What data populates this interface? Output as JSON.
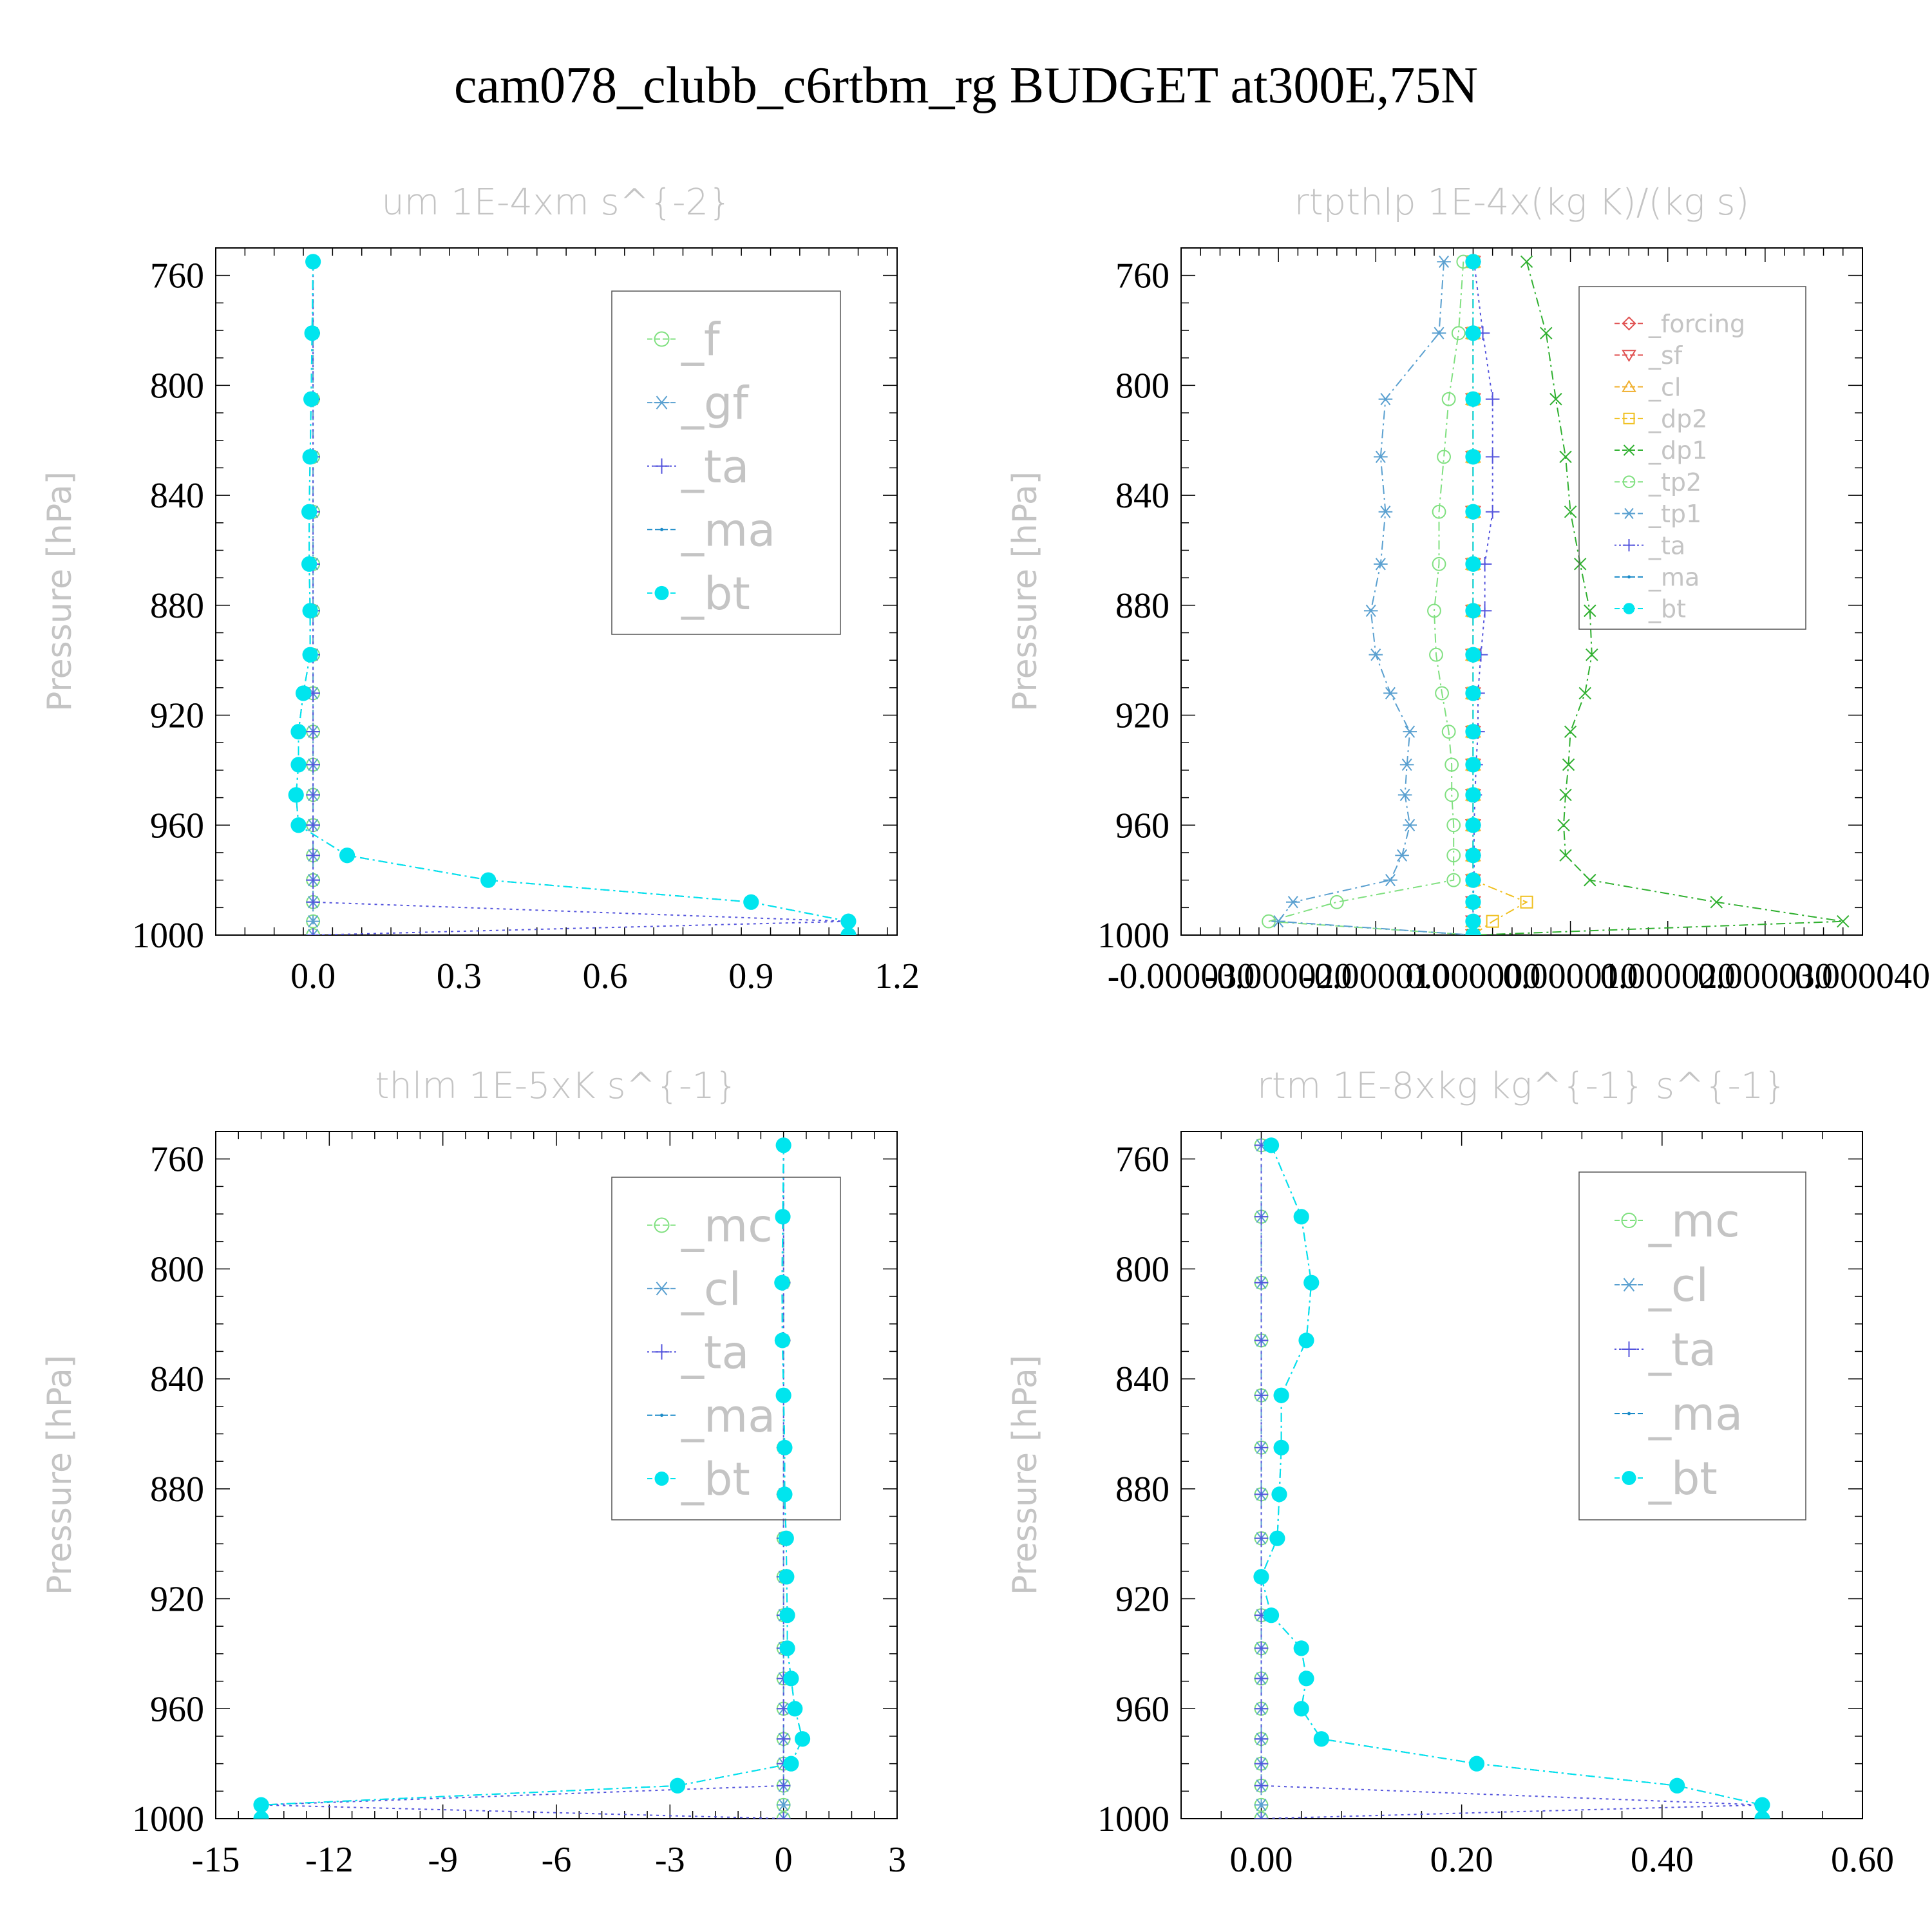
{
  "title": "cam078_clubb_c6rtbm_rg  BUDGET at300E,75N",
  "colors": {
    "f": "#7fe07f",
    "gf": "#5aa0d0",
    "ta": "#5555dd",
    "ma": "#1a8ac8",
    "bt": "#00e5ee",
    "forcing": "#e05050",
    "sf": "#e05050",
    "cl_orange": "#f0b030",
    "dp2": "#f0c020",
    "dp1": "#30b030",
    "tp2": "#80e080",
    "tp1": "#5aa0d0",
    "mc": "#7fe07f",
    "cl": "#5aa0d0"
  },
  "chart_data": [
    {
      "type": "line",
      "title": "um   1E-4xm s^{-2}",
      "ylabel": "Pressure [hPa]",
      "xlim": [
        -0.2,
        1.2
      ],
      "ylim": [
        1000,
        750
      ],
      "xticks": [
        0.0,
        0.3,
        0.6,
        0.9,
        1.2
      ],
      "xtick_labels": [
        "0.0",
        "0.3",
        "0.6",
        "0.9",
        "1.2"
      ],
      "yticks": [
        760,
        800,
        840,
        880,
        920,
        960,
        1000
      ],
      "ytick_labels": [
        "760",
        "800",
        "840",
        "880",
        "920",
        "960",
        "1000"
      ],
      "legend_position": "top-right",
      "y": [
        755,
        781,
        805,
        826,
        846,
        865,
        882,
        898,
        912,
        926,
        938,
        949,
        960,
        971,
        980,
        988,
        995,
        1000
      ],
      "series": [
        {
          "name": "_f",
          "color": "f",
          "marker": "circle-open",
          "values": [
            0,
            0,
            0,
            0,
            0,
            0,
            0,
            0,
            0,
            0,
            0,
            0,
            0,
            0,
            0,
            0,
            0,
            0
          ]
        },
        {
          "name": "_gf",
          "color": "gf",
          "marker": "asterisk",
          "values": [
            0,
            0,
            0,
            0,
            0,
            0,
            0,
            0,
            0,
            0,
            0,
            0,
            0,
            0,
            0,
            0,
            0,
            0
          ]
        },
        {
          "name": "_ta",
          "color": "ta",
          "marker": "plus",
          "dash": "dotted",
          "values": [
            0,
            0,
            0,
            0,
            0,
            0,
            0,
            0,
            0,
            0,
            0,
            0,
            0,
            0,
            0,
            0,
            1.1,
            0
          ]
        },
        {
          "name": "_ma",
          "color": "ma",
          "marker": "dot",
          "values": [
            0,
            -0.002,
            -0.004,
            -0.006,
            -0.008,
            -0.008,
            -0.006,
            -0.006,
            -0.02,
            -0.03,
            -0.03,
            -0.035,
            -0.03,
            0.07,
            0.36,
            0.9,
            1.1,
            1.1
          ]
        },
        {
          "name": "_bt",
          "color": "bt",
          "marker": "filled-circle",
          "values": [
            0,
            -0.002,
            -0.004,
            -0.006,
            -0.008,
            -0.008,
            -0.006,
            -0.006,
            -0.02,
            -0.03,
            -0.03,
            -0.035,
            -0.03,
            0.07,
            0.36,
            0.9,
            1.1,
            1.1
          ]
        }
      ]
    },
    {
      "type": "line",
      "title": "rtpthlp   1E-4x(kg K)/(kg s)",
      "ylabel": "Pressure [hPa]",
      "xlim": [
        -3e-05,
        4e-05
      ],
      "ylim": [
        1000,
        750
      ],
      "xticks": [
        -3e-05,
        -2e-05,
        -1e-05,
        0.0,
        1e-05,
        2e-05,
        3e-05,
        4e-05
      ],
      "xtick_labels": [
        "-0.000030",
        "-0.000020",
        "-0.000010",
        "0.000000",
        "0.000010",
        "0.000020",
        "0.000030",
        "0.000040"
      ],
      "yticks": [
        760,
        800,
        840,
        880,
        920,
        960,
        1000
      ],
      "ytick_labels": [
        "760",
        "800",
        "840",
        "880",
        "920",
        "960",
        "1000"
      ],
      "legend_position": "top-right",
      "y": [
        755,
        781,
        805,
        826,
        846,
        865,
        882,
        898,
        912,
        926,
        938,
        949,
        960,
        971,
        980,
        988,
        995,
        1000
      ],
      "series": [
        {
          "name": "_forcing",
          "color": "forcing",
          "marker": "diamond-open",
          "values": [
            0,
            0,
            0,
            0,
            0,
            0,
            0,
            0,
            0,
            0,
            0,
            0,
            0,
            0,
            0,
            0,
            0,
            0
          ]
        },
        {
          "name": "_sf",
          "color": "sf",
          "marker": "triangle-down-open",
          "values": [
            0,
            0,
            0,
            0,
            0,
            0,
            0,
            0,
            0,
            0,
            0,
            0,
            0,
            0,
            0,
            0,
            0,
            0
          ]
        },
        {
          "name": "_cl",
          "color": "cl_orange",
          "marker": "triangle-up-open",
          "values": [
            0,
            0,
            0,
            0,
            0,
            0,
            0,
            0,
            0,
            0,
            0,
            0,
            0,
            0,
            0,
            0,
            0,
            0
          ]
        },
        {
          "name": "_dp2",
          "color": "dp2",
          "marker": "square-open",
          "values": [
            0,
            0,
            0,
            0,
            0,
            0,
            0,
            0,
            0,
            0,
            0,
            0,
            0,
            0,
            0,
            5.5e-06,
            2e-06,
            0
          ]
        },
        {
          "name": "_dp1",
          "color": "dp1",
          "marker": "x",
          "values": [
            5.5e-06,
            7.5e-06,
            8.5e-06,
            9.5e-06,
            1e-05,
            1.1e-05,
            1.2e-05,
            1.22e-05,
            1.15e-05,
            1e-05,
            9.8e-06,
            9.5e-06,
            9.3e-06,
            9.5e-06,
            1.2e-05,
            2.5e-05,
            3.8e-05,
            0
          ]
        },
        {
          "name": "_tp2",
          "color": "tp2",
          "marker": "circle-open",
          "values": [
            -1e-06,
            -1.5e-06,
            -2.5e-06,
            -3e-06,
            -3.5e-06,
            -3.5e-06,
            -4e-06,
            -3.8e-06,
            -3.2e-06,
            -2.5e-06,
            -2.2e-06,
            -2.2e-06,
            -2e-06,
            -2e-06,
            -2e-06,
            -1.4e-05,
            -2.1e-05,
            0
          ]
        },
        {
          "name": "_tp1",
          "color": "tp1",
          "marker": "asterisk",
          "values": [
            -3e-06,
            -3.5e-06,
            -9e-06,
            -9.5e-06,
            -9e-06,
            -9.5e-06,
            -1.05e-05,
            -1e-05,
            -8.5e-06,
            -6.5e-06,
            -6.8e-06,
            -7e-06,
            -6.5e-06,
            -7.3e-06,
            -8.5e-06,
            -1.85e-05,
            -2e-05,
            0
          ]
        },
        {
          "name": "_ta",
          "color": "ta",
          "marker": "plus",
          "dash": "dotted",
          "values": [
            1e-07,
            1e-06,
            2e-06,
            2e-06,
            2e-06,
            1.2e-06,
            1.2e-06,
            8e-07,
            5e-07,
            5e-07,
            3e-07,
            2e-07,
            1e-07,
            1e-07,
            1e-07,
            0,
            0,
            0
          ]
        },
        {
          "name": "_ma",
          "color": "ma",
          "marker": "dot",
          "values": [
            0,
            0,
            0,
            0,
            0,
            0,
            0,
            0,
            0,
            0,
            0,
            0,
            0,
            0,
            0,
            0,
            0,
            0
          ]
        },
        {
          "name": "_bt",
          "color": "bt",
          "marker": "filled-circle",
          "values": [
            0,
            0,
            0,
            0,
            0,
            0,
            0,
            0,
            0,
            0,
            0,
            0,
            0,
            0,
            0,
            0,
            0,
            0
          ]
        }
      ]
    },
    {
      "type": "line",
      "title": "thlm   1E-5xK s^{-1}",
      "ylabel": "Pressure [hPa]",
      "xlim": [
        -15,
        3
      ],
      "ylim": [
        1000,
        750
      ],
      "xticks": [
        -15,
        -12,
        -9,
        -6,
        -3,
        0,
        3
      ],
      "xtick_labels": [
        "-15",
        "-12",
        "-9",
        "-6",
        "-3",
        "0",
        "3"
      ],
      "yticks": [
        760,
        800,
        840,
        880,
        920,
        960,
        1000
      ],
      "ytick_labels": [
        "760",
        "800",
        "840",
        "880",
        "920",
        "960",
        "1000"
      ],
      "legend_position": "top-right",
      "y": [
        755,
        781,
        805,
        826,
        846,
        865,
        882,
        898,
        912,
        926,
        938,
        949,
        960,
        971,
        980,
        988,
        995,
        1000
      ],
      "series": [
        {
          "name": "_mc",
          "color": "mc",
          "marker": "circle-open",
          "values": [
            0,
            0,
            0,
            0,
            0,
            0,
            0,
            0,
            0,
            0,
            0,
            0,
            0,
            0,
            0,
            0,
            0,
            0
          ]
        },
        {
          "name": "_cl",
          "color": "cl",
          "marker": "asterisk",
          "values": [
            0,
            0,
            0,
            0,
            0,
            0,
            0,
            0,
            0,
            0,
            0,
            0,
            0,
            0,
            0,
            0,
            0,
            0
          ]
        },
        {
          "name": "_ta",
          "color": "ta",
          "marker": "plus",
          "dash": "dotted",
          "values": [
            0,
            0,
            0,
            0,
            0,
            0,
            0,
            0,
            0,
            0,
            0,
            0,
            0,
            0,
            0,
            0,
            -13.8,
            0
          ]
        },
        {
          "name": "_ma",
          "color": "ma",
          "marker": "dot",
          "values": [
            0,
            -0.02,
            -0.04,
            -0.03,
            0.0,
            0.03,
            0.03,
            0.07,
            0.08,
            0.1,
            0.1,
            0.2,
            0.3,
            0.5,
            0.2,
            -2.8,
            -13.8,
            -13.8
          ]
        },
        {
          "name": "_bt",
          "color": "bt",
          "marker": "filled-circle",
          "values": [
            0,
            -0.02,
            -0.04,
            -0.03,
            0.0,
            0.03,
            0.03,
            0.07,
            0.08,
            0.1,
            0.1,
            0.2,
            0.3,
            0.5,
            0.2,
            -2.8,
            -13.8,
            -13.8
          ]
        }
      ]
    },
    {
      "type": "line",
      "title": "rtm   1E-8xkg kg^{-1} s^{-1}",
      "ylabel": "Pressure [hPa]",
      "xlim": [
        -0.08,
        0.6
      ],
      "ylim": [
        1000,
        750
      ],
      "xticks": [
        0.0,
        0.2,
        0.4,
        0.6
      ],
      "xtick_labels": [
        "0.00",
        "0.20",
        "0.40",
        "0.60"
      ],
      "yticks": [
        760,
        800,
        840,
        880,
        920,
        960,
        1000
      ],
      "ytick_labels": [
        "760",
        "800",
        "840",
        "880",
        "920",
        "960",
        "1000"
      ],
      "legend_position": "top-right",
      "y": [
        755,
        781,
        805,
        826,
        846,
        865,
        882,
        898,
        912,
        926,
        938,
        949,
        960,
        971,
        980,
        988,
        995,
        1000
      ],
      "series": [
        {
          "name": "_mc",
          "color": "mc",
          "marker": "circle-open",
          "values": [
            0,
            0,
            0,
            0,
            0,
            0,
            0,
            0,
            0,
            0,
            0,
            0,
            0,
            0,
            0,
            0,
            0,
            0
          ]
        },
        {
          "name": "_cl",
          "color": "cl",
          "marker": "asterisk",
          "values": [
            0,
            0,
            0,
            0,
            0,
            0,
            0,
            0,
            0,
            0,
            0,
            0,
            0,
            0,
            0,
            0,
            0,
            0
          ]
        },
        {
          "name": "_ta",
          "color": "ta",
          "marker": "plus",
          "dash": "dotted",
          "values": [
            0,
            0,
            0,
            0,
            0,
            0,
            0,
            0,
            0,
            0,
            0,
            0,
            0,
            0,
            0,
            0,
            0.5,
            0
          ]
        },
        {
          "name": "_ma",
          "color": "ma",
          "marker": "dot",
          "values": [
            0.01,
            0.04,
            0.05,
            0.045,
            0.02,
            0.02,
            0.018,
            0.016,
            0.0,
            0.01,
            0.04,
            0.045,
            0.04,
            0.06,
            0.215,
            0.415,
            0.5,
            0.5
          ]
        },
        {
          "name": "_bt",
          "color": "bt",
          "marker": "filled-circle",
          "values": [
            0.01,
            0.04,
            0.05,
            0.045,
            0.02,
            0.02,
            0.018,
            0.016,
            0.0,
            0.01,
            0.04,
            0.045,
            0.04,
            0.06,
            0.215,
            0.415,
            0.5,
            0.5
          ]
        }
      ]
    }
  ]
}
